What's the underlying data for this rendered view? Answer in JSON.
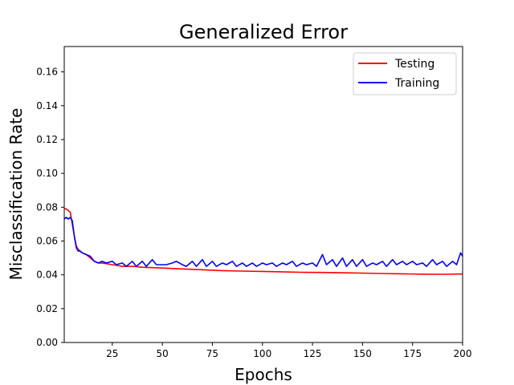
{
  "chart_data": {
    "type": "line",
    "title": "Generalized Error",
    "xlabel": "Epochs",
    "ylabel": "Misclassification Rate",
    "xlim": [
      1,
      200
    ],
    "ylim": [
      0,
      0.175
    ],
    "xticks": [
      25,
      50,
      75,
      100,
      125,
      150,
      175,
      200
    ],
    "yticks": [
      0.0,
      0.02,
      0.04,
      0.06,
      0.08,
      0.1,
      0.12,
      0.14,
      0.16
    ],
    "xtick_labels": [
      "25",
      "50",
      "75",
      "100",
      "125",
      "150",
      "175",
      "200"
    ],
    "ytick_labels": [
      "0.00",
      "0.02",
      "0.04",
      "0.06",
      "0.08",
      "0.10",
      "0.12",
      "0.14",
      "0.16"
    ],
    "grid": false,
    "legend_position": "top-right",
    "series": [
      {
        "name": "Testing",
        "color": "#ff0000",
        "x": [
          1,
          2,
          3,
          4,
          5,
          6,
          7,
          8,
          9,
          10,
          12,
          14,
          16,
          18,
          20,
          25,
          30,
          35,
          40,
          50,
          60,
          70,
          80,
          90,
          100,
          110,
          120,
          130,
          140,
          150,
          160,
          170,
          180,
          190,
          200
        ],
        "values": [
          0.079,
          0.079,
          0.078,
          0.077,
          0.07,
          0.063,
          0.057,
          0.055,
          0.054,
          0.053,
          0.052,
          0.05,
          0.048,
          0.047,
          0.047,
          0.046,
          0.045,
          0.045,
          0.0445,
          0.044,
          0.0435,
          0.043,
          0.0425,
          0.0422,
          0.042,
          0.0418,
          0.0415,
          0.0414,
          0.0412,
          0.041,
          0.0408,
          0.0406,
          0.0404,
          0.0403,
          0.0405
        ]
      },
      {
        "name": "Training",
        "color": "#0000ff",
        "x": [
          1,
          2,
          3,
          4,
          5,
          6,
          7,
          8,
          9,
          10,
          12,
          14,
          16,
          18,
          20,
          22,
          25,
          27,
          30,
          32,
          35,
          37,
          40,
          42,
          45,
          47,
          50,
          52,
          55,
          57,
          60,
          62,
          65,
          67,
          70,
          72,
          75,
          77,
          80,
          82,
          85,
          87,
          90,
          92,
          95,
          97,
          100,
          102,
          105,
          107,
          110,
          112,
          115,
          117,
          120,
          122,
          125,
          127,
          130,
          132,
          135,
          137,
          140,
          142,
          145,
          147,
          150,
          152,
          155,
          157,
          160,
          162,
          165,
          167,
          170,
          172,
          175,
          177,
          180,
          182,
          185,
          187,
          190,
          192,
          195,
          197,
          199,
          200
        ],
        "values": [
          0.073,
          0.074,
          0.073,
          0.074,
          0.072,
          0.063,
          0.056,
          0.054,
          0.054,
          0.053,
          0.052,
          0.051,
          0.048,
          0.047,
          0.048,
          0.047,
          0.048,
          0.046,
          0.047,
          0.045,
          0.048,
          0.045,
          0.048,
          0.045,
          0.049,
          0.046,
          0.046,
          0.046,
          0.047,
          0.048,
          0.046,
          0.045,
          0.048,
          0.045,
          0.049,
          0.045,
          0.048,
          0.045,
          0.047,
          0.046,
          0.048,
          0.045,
          0.047,
          0.045,
          0.047,
          0.045,
          0.047,
          0.046,
          0.047,
          0.045,
          0.047,
          0.046,
          0.048,
          0.045,
          0.047,
          0.046,
          0.047,
          0.045,
          0.052,
          0.046,
          0.049,
          0.045,
          0.05,
          0.045,
          0.049,
          0.045,
          0.049,
          0.045,
          0.047,
          0.046,
          0.048,
          0.045,
          0.049,
          0.046,
          0.048,
          0.046,
          0.048,
          0.046,
          0.047,
          0.045,
          0.049,
          0.046,
          0.048,
          0.045,
          0.048,
          0.046,
          0.053,
          0.051
        ]
      }
    ]
  }
}
